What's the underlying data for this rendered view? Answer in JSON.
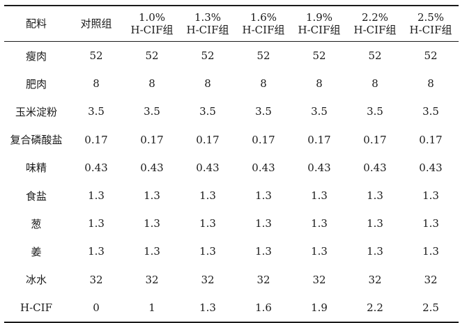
{
  "table": {
    "headers": [
      {
        "line1": "配料",
        "line2": ""
      },
      {
        "line1": "对照组",
        "line2": ""
      },
      {
        "line1": "1.0%",
        "line2": "H-CIF组"
      },
      {
        "line1": "1.3%",
        "line2": "H-CIF组"
      },
      {
        "line1": "1.6%",
        "line2": "H-CIF组"
      },
      {
        "line1": "1.9%",
        "line2": "H-CIF组"
      },
      {
        "line1": "2.2%",
        "line2": "H-CIF组"
      },
      {
        "line1": "2.5%",
        "line2": "H-CIF组"
      }
    ],
    "rows": [
      [
        "瘦肉",
        "52",
        "52",
        "52",
        "52",
        "52",
        "52",
        "52"
      ],
      [
        "肥肉",
        "8",
        "8",
        "8",
        "8",
        "8",
        "8",
        "8"
      ],
      [
        "玉米淀粉",
        "3.5",
        "3.5",
        "3.5",
        "3.5",
        "3.5",
        "3.5",
        "3.5"
      ],
      [
        "复合磷酸盐",
        "0.17",
        "0.17",
        "0.17",
        "0.17",
        "0.17",
        "0.17",
        "0.17"
      ],
      [
        "味精",
        "0.43",
        "0.43",
        "0.43",
        "0.43",
        "0.43",
        "0.43",
        "0.43"
      ],
      [
        "食盐",
        "1.3",
        "1.3",
        "1.3",
        "1.3",
        "1.3",
        "1.3",
        "1.3"
      ],
      [
        "葱",
        "1.3",
        "1.3",
        "1.3",
        "1.3",
        "1.3",
        "1.3",
        "1.3"
      ],
      [
        "姜",
        "1.3",
        "1.3",
        "1.3",
        "1.3",
        "1.3",
        "1.3",
        "1.3"
      ],
      [
        "冰水",
        "32",
        "32",
        "32",
        "32",
        "32",
        "32",
        "32"
      ],
      [
        "H-CIF",
        "0",
        "1",
        "1.3",
        "1.6",
        "1.9",
        "2.2",
        "2.5"
      ]
    ]
  }
}
